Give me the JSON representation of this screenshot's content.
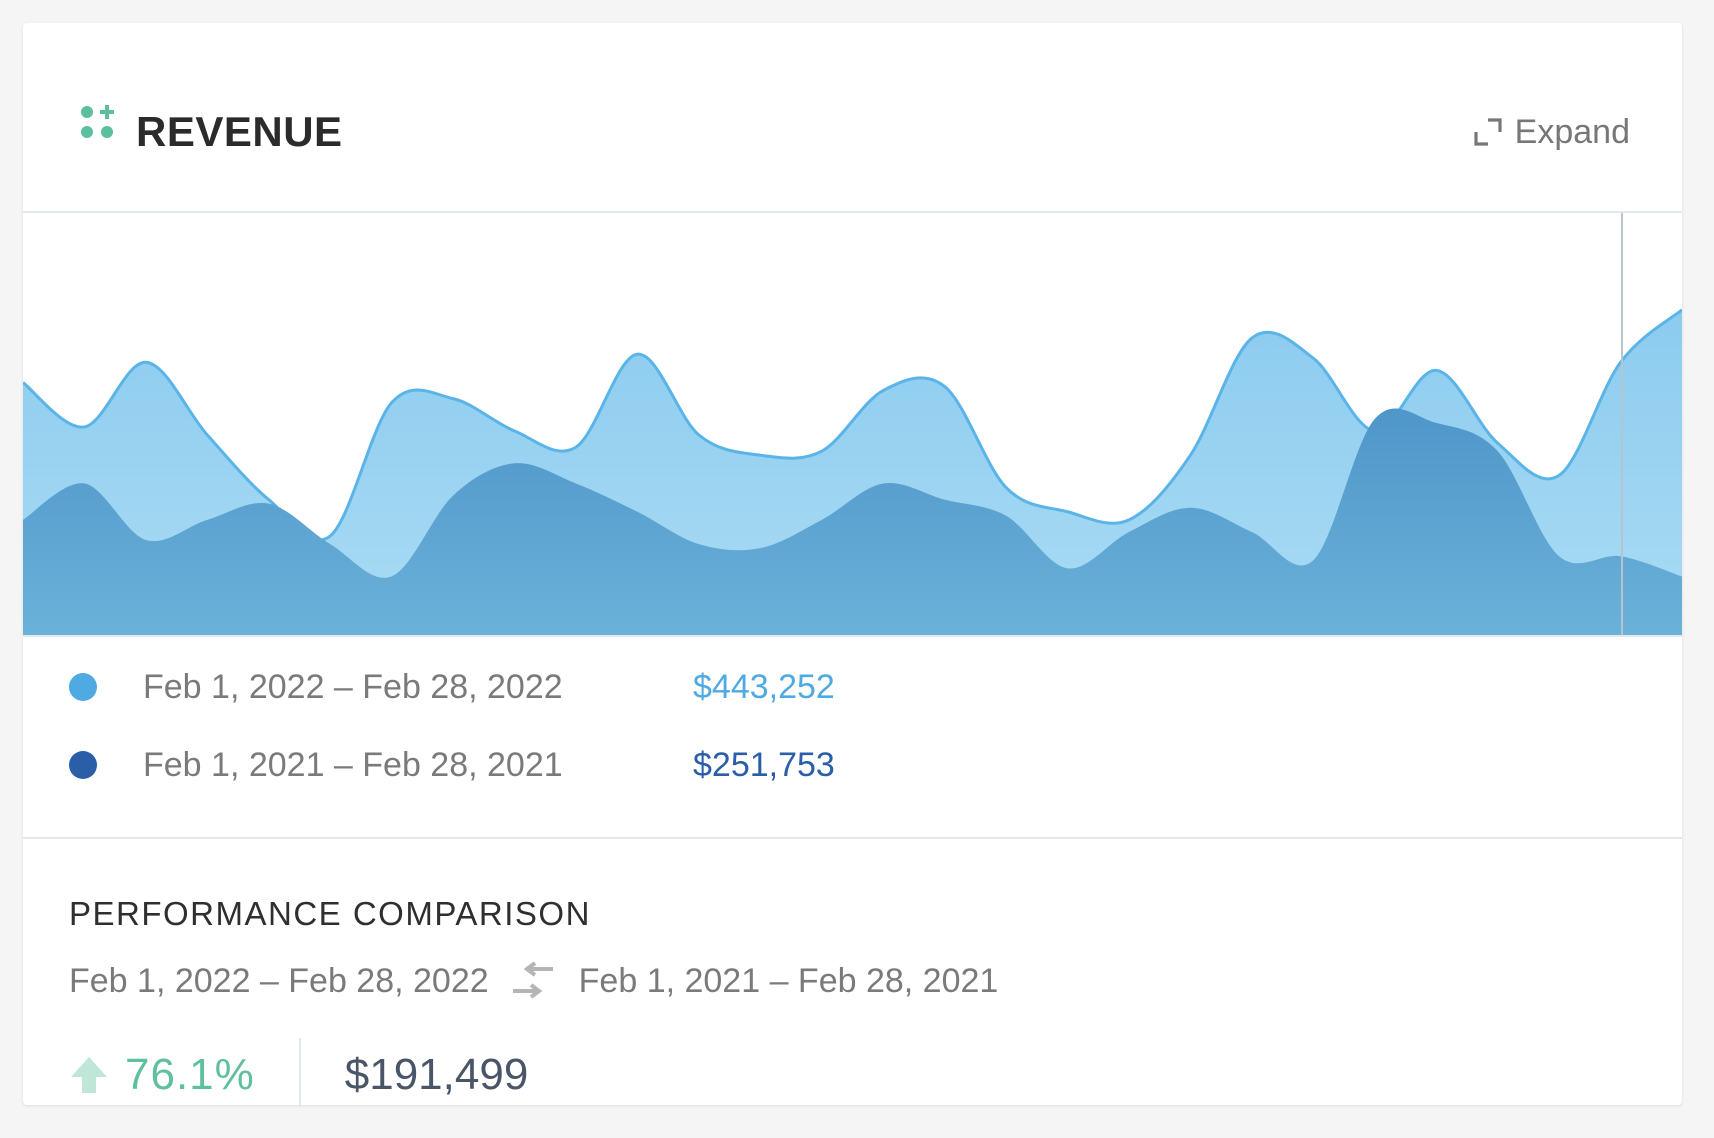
{
  "header": {
    "title": "REVENUE",
    "expand_label": "Expand",
    "icon": "apps-plus-icon",
    "accent_color": "#5cbf9f"
  },
  "chart_data": {
    "type": "area",
    "x": [
      1,
      2,
      3,
      4,
      5,
      6,
      7,
      8,
      9,
      10,
      11,
      12,
      13,
      14,
      15,
      16,
      17,
      18,
      19,
      20,
      21,
      22,
      23,
      24,
      25,
      26,
      27,
      28
    ],
    "ylim": [
      0,
      1
    ],
    "grid": false,
    "legend_placement": "bottom",
    "series": [
      {
        "name": "Feb 1, 2022 – Feb 28, 2022",
        "color": "#5ab4e8",
        "total": "$443,252",
        "values": [
          0.63,
          0.52,
          0.68,
          0.5,
          0.34,
          0.25,
          0.58,
          0.59,
          0.51,
          0.47,
          0.7,
          0.5,
          0.45,
          0.46,
          0.61,
          0.62,
          0.37,
          0.31,
          0.29,
          0.45,
          0.74,
          0.69,
          0.51,
          0.66,
          0.48,
          0.4,
          0.68,
          0.81
        ]
      },
      {
        "name": "Feb 1, 2021 – Feb 28, 2021",
        "color": "#2a5ea8",
        "total": "$251,753",
        "values": [
          0.29,
          0.38,
          0.24,
          0.29,
          0.33,
          0.23,
          0.15,
          0.35,
          0.43,
          0.38,
          0.31,
          0.23,
          0.22,
          0.29,
          0.38,
          0.34,
          0.3,
          0.17,
          0.26,
          0.32,
          0.26,
          0.19,
          0.54,
          0.53,
          0.46,
          0.2,
          0.2,
          0.15
        ]
      }
    ]
  },
  "legend": {
    "items": [
      {
        "label": "Feb 1, 2022 – Feb 28, 2022",
        "value": "$443,252",
        "dot_color": "#4fa9e3",
        "value_color": "#4fa9e3"
      },
      {
        "label": "Feb 1, 2021 – Feb 28, 2021",
        "value": "$251,753",
        "dot_color": "#2a5ea8",
        "value_color": "#2a5ea8"
      }
    ]
  },
  "performance": {
    "title": "PERFORMANCE COMPARISON",
    "current_range": "Feb 1, 2022 – Feb 28, 2022",
    "previous_range": "Feb 1, 2021 – Feb 28, 2021",
    "change_percent": "76.1%",
    "change_direction": "up",
    "change_color": "#5fbf9f",
    "difference": "$191,499"
  }
}
